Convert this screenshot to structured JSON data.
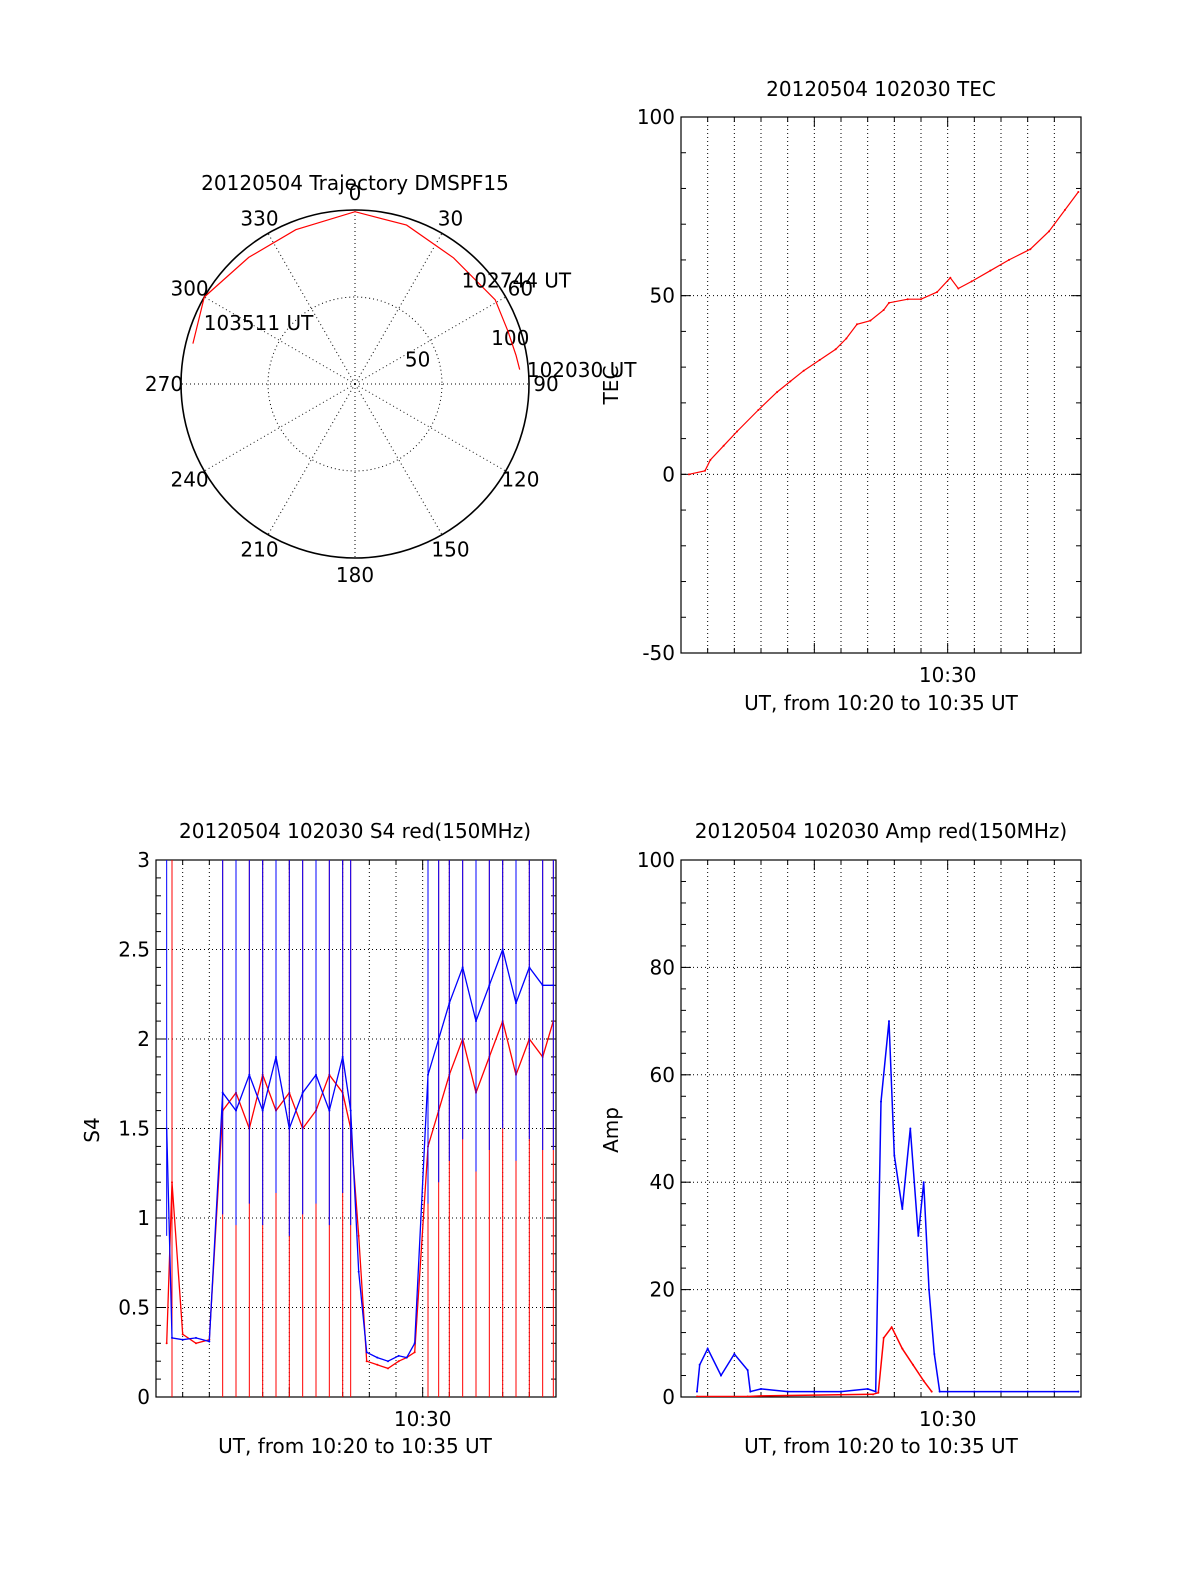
{
  "colors": {
    "red": "#ff0000",
    "blue": "#0000ff",
    "axis": "#000000"
  },
  "chart_data": [
    {
      "id": "polar",
      "type": "scatter",
      "title": "20120504 Trajectory DMSPF15",
      "angle_labels": [
        "0",
        "30",
        "60",
        "90",
        "120",
        "150",
        "180",
        "210",
        "240",
        "270",
        "300",
        "330"
      ],
      "radius_labels": [
        "50",
        "100"
      ],
      "rlim": [
        0,
        100
      ],
      "grid": true,
      "trajectory": [
        {
          "az": 284,
          "el_r": 96
        },
        {
          "az": 300,
          "el_r": 100
        },
        {
          "az": 320,
          "el_r": 95
        },
        {
          "az": 339,
          "el_r": 95
        },
        {
          "az": 0,
          "el_r": 99
        },
        {
          "az": 18,
          "el_r": 96
        },
        {
          "az": 38,
          "el_r": 92
        },
        {
          "az": 59,
          "el_r": 94
        },
        {
          "az": 71,
          "el_r": 93
        },
        {
          "az": 80,
          "el_r": 94
        },
        {
          "az": 85,
          "el_r": 95
        }
      ],
      "annotations": [
        {
          "text": "103511 UT",
          "az": 292,
          "el_r": 95
        },
        {
          "text": "102744 UT",
          "az": 45,
          "el_r": 85
        },
        {
          "text": "102030 UT",
          "az": 85,
          "el_r": 98
        }
      ]
    },
    {
      "id": "tec",
      "type": "line",
      "title": "20120504 102030 TEC",
      "xlabel": "UT, from 10:20 to 10:35 UT",
      "ylabel": "TEC",
      "xlim": [
        0,
        15
      ],
      "ylim": [
        -50,
        100
      ],
      "yticks": [
        -50,
        0,
        50,
        100
      ],
      "xtick_labels": [
        {
          "at": 10,
          "label": "10:30"
        }
      ],
      "grid": true,
      "series": [
        {
          "color": "red",
          "x": [
            0.3,
            0.9,
            1.1,
            1.6,
            2.1,
            2.9,
            3.6,
            4.1,
            4.6,
            5.2,
            5.8,
            6.2,
            6.6,
            7.1,
            7.6,
            7.8,
            8.5,
            9.0,
            9.6,
            10.1,
            10.4,
            10.9,
            11.6,
            12.3,
            13.1,
            13.8,
            14.4,
            14.9
          ],
          "y": [
            0,
            1,
            4,
            8,
            12,
            18,
            23,
            26,
            29,
            32,
            35,
            38,
            42,
            43,
            46,
            48,
            49,
            49,
            51,
            55,
            52,
            54,
            57,
            60,
            63,
            68,
            74,
            79
          ]
        }
      ]
    },
    {
      "id": "s4",
      "type": "line",
      "title": "20120504 102030 S4 red(150MHz)",
      "xlabel": "UT, from 10:20 to 10:35 UT",
      "ylabel": "S4",
      "xlim": [
        0,
        15
      ],
      "ylim": [
        0,
        3
      ],
      "yticks": [
        0,
        0.5,
        1,
        1.5,
        2,
        2.5,
        3
      ],
      "xtick_labels": [
        {
          "at": 10,
          "label": "10:30"
        }
      ],
      "grid": true,
      "series": [
        {
          "color": "red",
          "x": [
            0.4,
            0.6,
            1.0,
            1.5,
            2.0,
            2.5,
            3.0,
            3.5,
            4.0,
            4.5,
            5.0,
            5.5,
            6.0,
            6.5,
            7.0,
            7.3,
            7.6,
            7.9,
            8.3,
            8.7,
            9.1,
            9.4,
            9.7,
            10.2,
            10.6,
            11.0,
            11.5,
            12.0,
            12.5,
            13.0,
            13.5,
            14.0,
            14.5,
            14.9
          ],
          "y": [
            0.3,
            1.2,
            0.35,
            0.3,
            0.32,
            1.6,
            1.7,
            1.5,
            1.8,
            1.6,
            1.7,
            1.5,
            1.6,
            1.8,
            1.7,
            1.5,
            0.9,
            0.2,
            0.18,
            0.16,
            0.2,
            0.22,
            0.25,
            1.4,
            1.6,
            1.8,
            2.0,
            1.7,
            1.9,
            2.1,
            1.8,
            2.0,
            1.9,
            2.1
          ]
        },
        {
          "color": "blue",
          "x": [
            0.4,
            0.6,
            1.0,
            1.5,
            2.0,
            2.5,
            3.0,
            3.5,
            4.0,
            4.5,
            5.0,
            5.5,
            6.0,
            6.5,
            7.0,
            7.3,
            7.6,
            7.9,
            8.3,
            8.7,
            9.1,
            9.4,
            9.7,
            10.2,
            10.6,
            11.0,
            11.5,
            12.0,
            12.5,
            13.0,
            13.5,
            14.0,
            14.5,
            14.9
          ],
          "y": [
            1.5,
            0.33,
            0.32,
            0.33,
            0.31,
            1.7,
            1.6,
            1.8,
            1.6,
            1.9,
            1.5,
            1.7,
            1.8,
            1.6,
            1.9,
            1.6,
            0.7,
            0.25,
            0.22,
            0.2,
            0.23,
            0.22,
            0.3,
            1.8,
            2.0,
            2.2,
            2.4,
            2.1,
            2.3,
            2.5,
            2.2,
            2.4,
            2.3,
            2.3
          ]
        }
      ]
    },
    {
      "id": "amp",
      "type": "line",
      "title": "20120504 102030 Amp red(150MHz)",
      "xlabel": "UT, from 10:20 to 10:35 UT",
      "ylabel": "Amp",
      "xlim": [
        0,
        15
      ],
      "ylim": [
        0,
        100
      ],
      "yticks": [
        0,
        20,
        40,
        60,
        80,
        100
      ],
      "xtick_labels": [
        {
          "at": 10,
          "label": "10:30"
        }
      ],
      "grid": true,
      "series": [
        {
          "color": "red",
          "x": [
            0.6,
            2.5,
            3.0,
            7.2,
            7.4,
            7.6,
            7.9,
            8.3,
            8.7,
            9.1,
            9.4
          ],
          "y": [
            0.1,
            0.1,
            0.2,
            0.5,
            0.8,
            11,
            13,
            9,
            6,
            3,
            1
          ]
        },
        {
          "color": "blue",
          "x": [
            0.6,
            0.7,
            1.0,
            1.5,
            2.0,
            2.5,
            2.6,
            3.0,
            4.0,
            5.0,
            6.0,
            7.0,
            7.3,
            7.5,
            7.8,
            8.0,
            8.3,
            8.6,
            8.9,
            9.1,
            9.3,
            9.5,
            9.7,
            10.0,
            11.0,
            12.0,
            13.0,
            14.0,
            14.9
          ],
          "y": [
            1,
            6,
            9,
            4,
            8,
            5,
            1,
            1.5,
            1,
            1,
            1,
            1.5,
            1,
            55,
            70,
            45,
            35,
            50,
            30,
            40,
            20,
            8,
            1,
            1,
            1,
            1,
            1,
            1,
            1
          ]
        }
      ]
    }
  ]
}
